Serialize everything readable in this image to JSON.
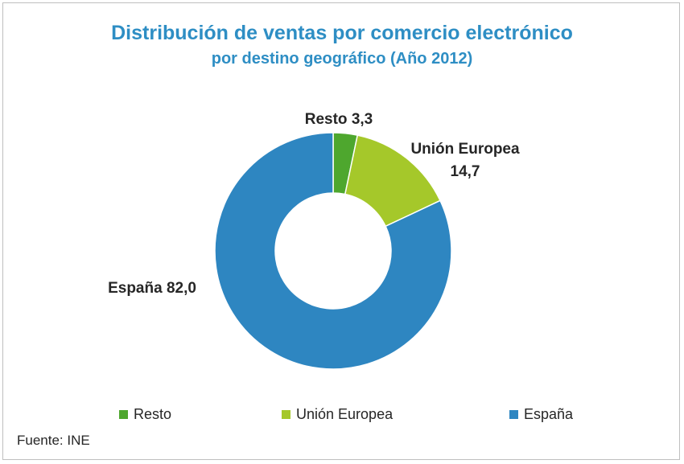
{
  "header": {
    "title": "Distribución de ventas por comercio electrónico",
    "subtitle": "por destino geográfico (Año 2012)"
  },
  "chart_data": {
    "type": "pie",
    "variant": "donut",
    "title": "Distribución de ventas por comercio electrónico",
    "subtitle": "por destino geográfico (Año 2012)",
    "categories": [
      "Resto",
      "Unión Europea",
      "España"
    ],
    "values": [
      3.3,
      14.7,
      82.0
    ],
    "data_labels": [
      "Resto 3,3",
      "Unión Europea 14,7",
      "España 82,0"
    ],
    "colors": [
      "#4ea72e",
      "#a5c82a",
      "#2e86c1"
    ],
    "legend_position": "bottom",
    "start_angle_deg": 0,
    "direction": "clockwise"
  },
  "labels": {
    "resto": {
      "line1": "Resto 3,3"
    },
    "ue": {
      "line1": "Unión Europea",
      "line2": "14,7"
    },
    "espana": {
      "line1": "España 82,0"
    }
  },
  "legend": {
    "items": [
      {
        "label": "Resto",
        "color": "#4ea72e"
      },
      {
        "label": "Unión Europea",
        "color": "#a5c82a"
      },
      {
        "label": "España",
        "color": "#2e86c1"
      }
    ]
  },
  "footer": {
    "source": "Fuente: INE"
  }
}
